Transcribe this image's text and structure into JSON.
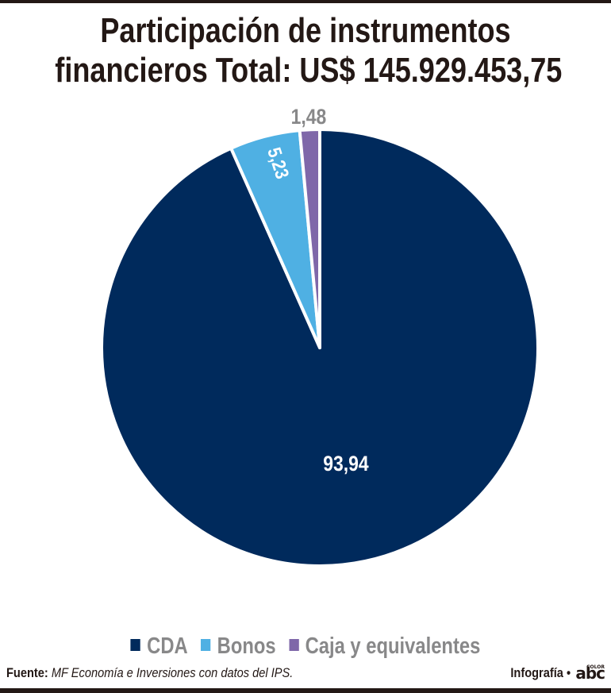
{
  "title": {
    "line1": "Participación de instrumentos",
    "line2": "financieros Total: US$ 145.929.453,75"
  },
  "chart_data": {
    "type": "pie",
    "title": "Participación de instrumentos financieros Total: US$ 145.929.453,75",
    "categories": [
      "CDA",
      "Bonos",
      "Caja y equivalentes"
    ],
    "values": [
      93.94,
      5.23,
      1.48
    ],
    "labels": [
      "93,94",
      "5,23",
      "1,48"
    ],
    "colors": [
      "#002a5c",
      "#4fb0e3",
      "#7f67a9"
    ],
    "start_angle": "12 o'clock",
    "direction": "clockwise from CDA",
    "legend_position": "bottom"
  },
  "labels": {
    "cda": "93,94",
    "bonos": "5,23",
    "caja": "1,48"
  },
  "legend": {
    "items": [
      {
        "label": "CDA",
        "color": "#002a5c"
      },
      {
        "label": "Bonos",
        "color": "#4fb0e3"
      },
      {
        "label": "Caja y equivalentes",
        "color": "#7f67a9"
      }
    ]
  },
  "footer": {
    "source_label": "Fuente:",
    "source_text": "MF Economía e Inversiones con datos del IPS.",
    "credit": "Infografía •",
    "logo": "abc",
    "logo_small": "COLOR"
  }
}
